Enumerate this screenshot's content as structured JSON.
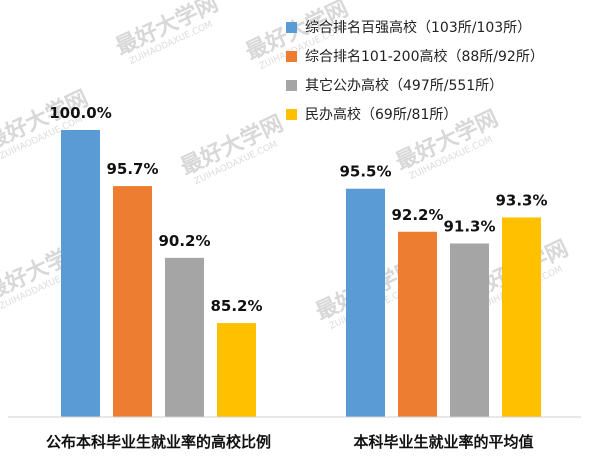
{
  "chart_data": {
    "type": "bar",
    "categories": [
      "公布本科毕业生就业率的高校比例",
      "本科毕业生就业率的平均值"
    ],
    "series": [
      {
        "name": "综合排名百强高校（103所/103所）",
        "color": "#5b9bd5",
        "values": [
          100.0,
          95.5
        ],
        "labels": [
          "100.0%",
          "95.5%"
        ]
      },
      {
        "name": "综合排名101-200高校（88所/92所）",
        "color": "#ed7d31",
        "values": [
          95.7,
          92.2
        ],
        "labels": [
          "95.7%",
          "92.2%"
        ]
      },
      {
        "name": "其它公办高校（497所/551所）",
        "color": "#a5a5a5",
        "values": [
          90.2,
          91.3
        ],
        "labels": [
          "90.2%",
          "91.3%"
        ]
      },
      {
        "name": "民办高校（69所/81所）",
        "color": "#ffc000",
        "values": [
          85.2,
          93.3
        ],
        "labels": [
          "85.2%",
          "93.3%"
        ]
      }
    ],
    "ylim": [
      78,
      100
    ],
    "grid": false,
    "legend_position": "top-right"
  },
  "watermark": {
    "text": "最好大学网",
    "url": "ZUIHAODAXUE.COM"
  }
}
